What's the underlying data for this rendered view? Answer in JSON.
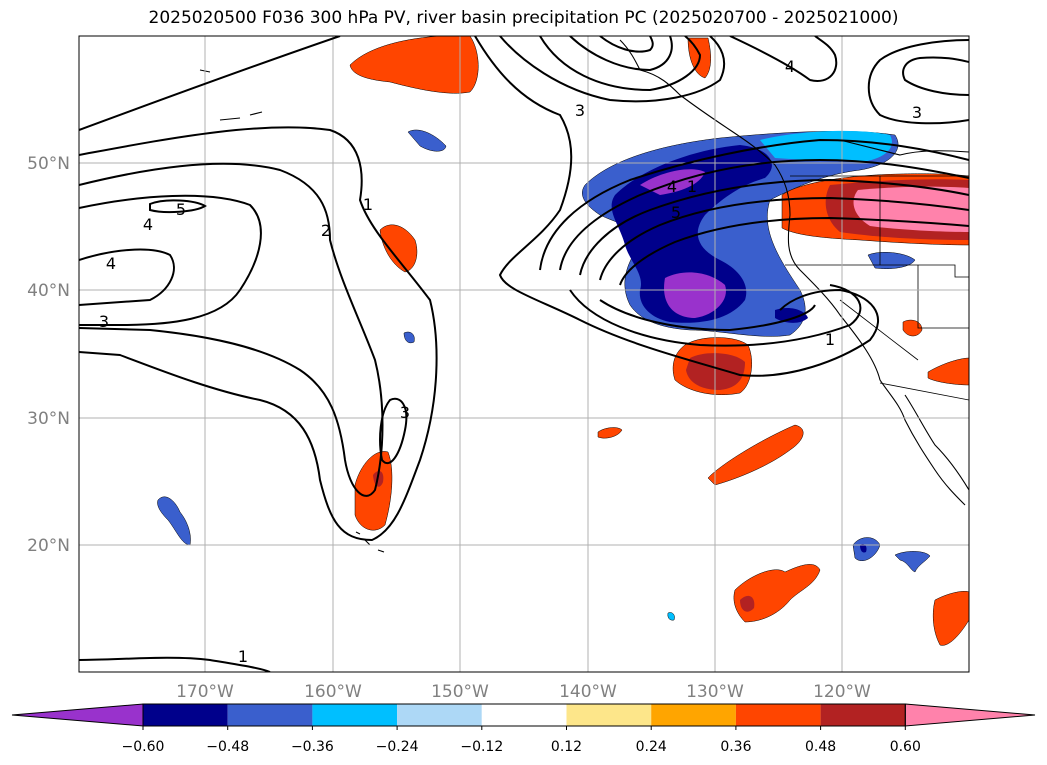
{
  "title": "2025020500 F036 300 hPa PV, river basin precipitation PC (2025020700 - 2025021000)",
  "lon_labels": [
    "170°W",
    "160°W",
    "150°W",
    "140°W",
    "130°W",
    "120°W"
  ],
  "lat_labels": [
    "50°N",
    "40°N",
    "30°N",
    "20°N"
  ],
  "contour_labels": [
    "5",
    "4",
    "4",
    "3",
    "3",
    "3",
    "3",
    "2",
    "1",
    "1",
    "1",
    "4",
    "4",
    "5",
    "1"
  ],
  "colorbar": {
    "colors": [
      "#9932cc",
      "#00008b",
      "#3a5fcd",
      "#00bfff",
      "#add8f6",
      "#ffffff",
      "#fde68a",
      "#ffa500",
      "#ff4500",
      "#b22222",
      "#ff82ab"
    ],
    "tick_labels": [
      "−0.60",
      "−0.48",
      "−0.36",
      "−0.24",
      "−0.12",
      "0.12",
      "0.24",
      "0.36",
      "0.48",
      "0.60"
    ]
  },
  "colors": {
    "grid": "#b0b0b0",
    "tick_label": "#808080",
    "contour": "#000000"
  }
}
